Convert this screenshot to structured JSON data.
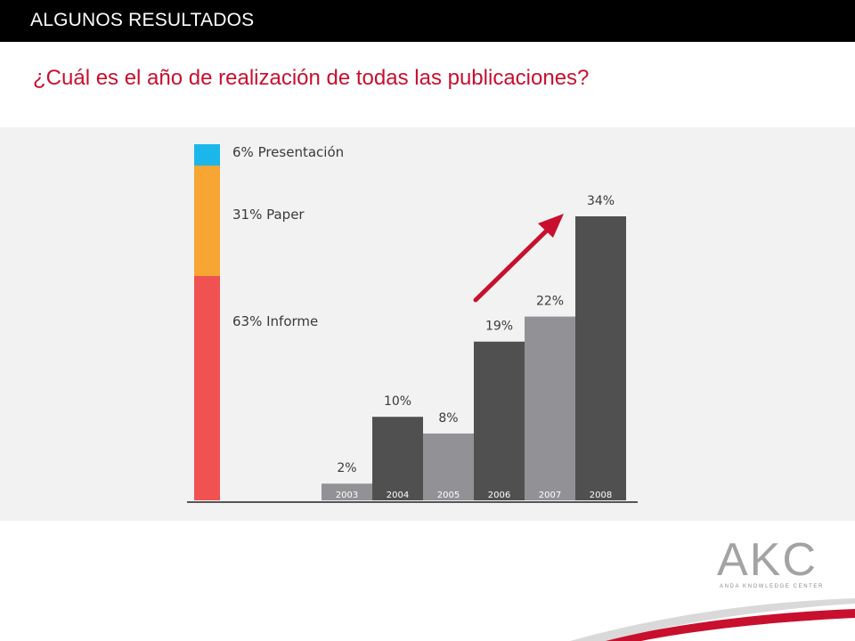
{
  "header": {
    "title": "ALGUNOS RESULTADOS"
  },
  "question": "¿Cuál es el año de realización de todas las publicaciones?",
  "logo": {
    "letters": "AKC",
    "subtitle": "ANDA KNOWLEDGE CENTER"
  },
  "colors": {
    "accent": "#c8102e",
    "presentacion": "#1bb7ea",
    "paper": "#f7a533",
    "informe": "#f05252",
    "bar_dark": "#505050",
    "bar_light": "#929296",
    "axis": "#555555"
  },
  "chart_data": [
    {
      "type": "bar",
      "stacked": true,
      "series": [
        {
          "name": "Informe",
          "label": "63% Informe",
          "value": 63
        },
        {
          "name": "Paper",
          "label": "31% Paper",
          "value": 31
        },
        {
          "name": "Presentación",
          "label": "6% Presentación",
          "value": 6
        }
      ]
    },
    {
      "type": "bar",
      "categories": [
        "2003",
        "2004",
        "2005",
        "2006",
        "2007",
        "2008"
      ],
      "values": [
        2,
        10,
        8,
        19,
        22,
        34
      ],
      "labels": [
        "2%",
        "10%",
        "8%",
        "19%",
        "22%",
        "34%"
      ],
      "shades": [
        "light",
        "dark",
        "light",
        "dark",
        "light",
        "dark"
      ],
      "ylim": [
        0,
        34
      ],
      "annotation": "upward-trend-arrow"
    }
  ]
}
